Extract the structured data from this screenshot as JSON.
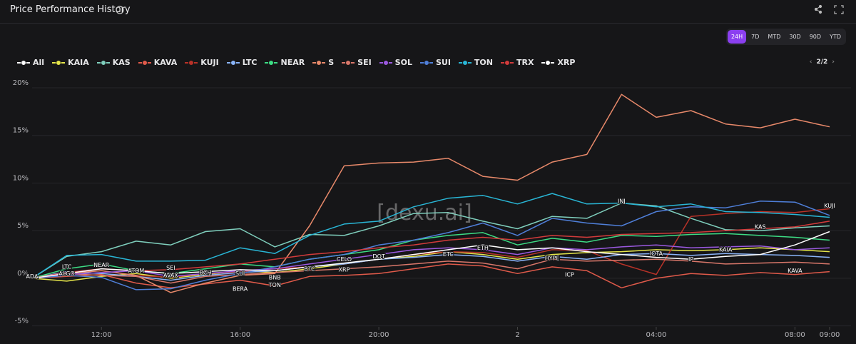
{
  "header": {
    "title": "Price Performance History",
    "timeframes": [
      "24H",
      "7D",
      "MTD",
      "30D",
      "90D",
      "YTD"
    ],
    "active_timeframe_index": 0
  },
  "pager": "2/2",
  "watermark": "[dexu.ai]",
  "chart_data": {
    "type": "line",
    "all_toggle": "All",
    "x": [
      10,
      11,
      12,
      13,
      14,
      15,
      16,
      17,
      18,
      19,
      20,
      21,
      22,
      23,
      24,
      25,
      26,
      27,
      28,
      29,
      30,
      31,
      32,
      33
    ],
    "xlim": [
      10,
      33
    ],
    "xticks": [
      {
        "value": 12,
        "label": "12:00"
      },
      {
        "value": 16,
        "label": "16:00"
      },
      {
        "value": 20,
        "label": "20:00"
      },
      {
        "value": 24,
        "label": "2"
      },
      {
        "value": 28,
        "label": "04:00"
      },
      {
        "value": 32,
        "label": "08:00"
      },
      {
        "value": 33,
        "label": "09:00"
      }
    ],
    "ylim": [
      -5.4,
      20.6
    ],
    "yticks": [
      {
        "value": -5,
        "label": "-5%"
      },
      {
        "value": 0,
        "label": "0%"
      },
      {
        "value": 5,
        "label": "5%"
      },
      {
        "value": 10,
        "label": "10%"
      },
      {
        "value": 15,
        "label": "15%"
      },
      {
        "value": 20,
        "label": "20%"
      }
    ],
    "grid": true,
    "series": [
      {
        "name": "KAIA",
        "color": "#e6e64a",
        "values": [
          0,
          -0.3,
          0.2,
          0.5,
          0.0,
          0.4,
          0.8,
          0.6,
          1.0,
          1.5,
          2.0,
          2.3,
          2.8,
          2.5,
          2.0,
          2.5,
          2.7,
          2.8,
          3.0,
          2.9,
          3.0,
          3.2,
          3.0,
          2.8
        ]
      },
      {
        "name": "KAS",
        "color": "#7fcfbd",
        "values": [
          0,
          2.3,
          2.8,
          3.9,
          3.5,
          4.9,
          5.2,
          3.3,
          4.6,
          4.5,
          5.5,
          6.8,
          6.9,
          6.0,
          5.2,
          6.5,
          6.3,
          7.9,
          7.6,
          6.3,
          5.1,
          5.0,
          5.3,
          5.5
        ]
      },
      {
        "name": "KAVA",
        "color": "#e05a4a",
        "values": [
          0,
          0.2,
          0.4,
          -0.5,
          -1.0,
          -0.6,
          -0.2,
          -0.8,
          0.2,
          0.3,
          0.5,
          1.0,
          1.5,
          1.3,
          0.5,
          1.2,
          0.8,
          -1.0,
          0.0,
          0.5,
          0.3,
          0.6,
          0.4,
          0.7
        ]
      },
      {
        "name": "KUJI",
        "color": "#b83228",
        "values": [
          0,
          0.5,
          0.8,
          0.3,
          0.1,
          0.5,
          0.7,
          1.0,
          1.2,
          1.5,
          2.0,
          2.5,
          2.8,
          2.7,
          2.2,
          3.0,
          2.9,
          1.5,
          0.4,
          6.5,
          6.8,
          7.0,
          6.9,
          7.3
        ]
      },
      {
        "name": "LTC",
        "color": "#8ab4f8",
        "values": [
          0,
          0.7,
          0.5,
          0.2,
          -0.2,
          0.3,
          0.6,
          0.8,
          1.2,
          1.5,
          2.0,
          2.2,
          2.5,
          2.3,
          1.8,
          2.3,
          2.0,
          2.5,
          2.6,
          2.4,
          2.6,
          2.5,
          2.4,
          2.2
        ]
      },
      {
        "name": "NEAR",
        "color": "#3ddc84",
        "values": [
          0,
          1.0,
          1.5,
          0.8,
          0.5,
          1.0,
          1.5,
          1.2,
          2.0,
          2.5,
          3.0,
          4.0,
          4.5,
          4.8,
          3.5,
          4.2,
          3.8,
          4.5,
          4.4,
          4.6,
          4.7,
          4.5,
          4.3,
          4.0
        ]
      },
      {
        "name": "S",
        "color": "#e8896a",
        "values": [
          0,
          0.5,
          0.8,
          0.3,
          -1.5,
          -0.5,
          0.3,
          0.5,
          5.5,
          11.8,
          12.1,
          12.2,
          12.6,
          10.7,
          10.3,
          12.2,
          13.0,
          19.3,
          16.9,
          17.6,
          16.2,
          15.8,
          16.7,
          15.9
        ]
      },
      {
        "name": "SEI",
        "color": "#d9776a",
        "values": [
          0,
          0.5,
          0.3,
          0.2,
          -0.5,
          0.2,
          0.4,
          0.6,
          0.8,
          1.0,
          1.2,
          1.5,
          1.8,
          1.6,
          1.0,
          2.0,
          1.8,
          1.9,
          2.0,
          1.8,
          1.5,
          1.6,
          1.7,
          1.5
        ]
      },
      {
        "name": "SOL",
        "color": "#9b59e0",
        "values": [
          0,
          0.4,
          0.6,
          0.8,
          0.2,
          0.5,
          0.8,
          1.0,
          1.5,
          2.0,
          2.5,
          3.0,
          3.2,
          3.0,
          2.5,
          3.2,
          3.0,
          3.3,
          3.5,
          3.2,
          3.3,
          3.4,
          3.0,
          3.2
        ]
      },
      {
        "name": "SUI",
        "color": "#4f7fd9",
        "values": [
          0,
          0.3,
          0.1,
          -1.2,
          -1.1,
          -0.2,
          0.5,
          1.2,
          2.0,
          2.5,
          3.5,
          4.0,
          4.8,
          5.8,
          4.5,
          6.3,
          5.8,
          5.5,
          7.0,
          7.5,
          7.4,
          8.1,
          8.0,
          6.6
        ]
      },
      {
        "name": "TON",
        "color": "#29b6d6",
        "values": [
          0,
          2.4,
          2.5,
          1.8,
          1.8,
          1.9,
          3.2,
          2.6,
          4.5,
          5.7,
          6.0,
          7.5,
          8.4,
          8.7,
          7.8,
          8.9,
          7.8,
          7.9,
          7.5,
          7.8,
          7.0,
          6.9,
          6.7,
          6.4
        ]
      },
      {
        "name": "TRX",
        "color": "#d23b3b",
        "values": [
          0,
          0.6,
          1.0,
          0.8,
          0.9,
          1.2,
          1.5,
          2.0,
          2.5,
          2.8,
          3.2,
          3.5,
          4.0,
          4.3,
          4.0,
          4.5,
          4.3,
          4.6,
          4.7,
          4.8,
          5.0,
          5.2,
          5.4,
          6.0
        ]
      },
      {
        "name": "XRP",
        "color": "#ffffff",
        "values": [
          0,
          0.5,
          1.0,
          0.8,
          0.5,
          0.7,
          0.9,
          0.8,
          1.2,
          1.6,
          2.0,
          2.5,
          3.0,
          3.5,
          3.0,
          3.2,
          2.8,
          2.5,
          2.2,
          2.0,
          2.3,
          2.5,
          3.5,
          4.9
        ]
      }
    ],
    "annotations": [
      {
        "text": "ADA",
        "x": 10,
        "y": 0
      },
      {
        "text": "LTC",
        "x": 11,
        "y": 1.0
      },
      {
        "text": "ALGO",
        "x": 11,
        "y": 0.3
      },
      {
        "text": "NEAR",
        "x": 12,
        "y": 1.2
      },
      {
        "text": "ATOM",
        "x": 13,
        "y": 0.6
      },
      {
        "text": "SEI",
        "x": 14,
        "y": 0.9
      },
      {
        "text": "AVAX",
        "x": 14,
        "y": 0.1
      },
      {
        "text": "BCH",
        "x": 15,
        "y": 0.4
      },
      {
        "text": "SUI",
        "x": 16,
        "y": 0.3
      },
      {
        "text": "BERA",
        "x": 16,
        "y": -1.3
      },
      {
        "text": "BNB",
        "x": 17,
        "y": -0.1
      },
      {
        "text": "TON",
        "x": 17,
        "y": -0.9
      },
      {
        "text": "BTC",
        "x": 18,
        "y": 0.8
      },
      {
        "text": "CELO",
        "x": 19,
        "y": 1.8
      },
      {
        "text": "XRP",
        "x": 19,
        "y": 0.7
      },
      {
        "text": "DOT",
        "x": 20,
        "y": 2.1
      },
      {
        "text": "ETC",
        "x": 22,
        "y": 2.3
      },
      {
        "text": "ETH",
        "x": 23,
        "y": 3.0
      },
      {
        "text": "HYPE",
        "x": 25,
        "y": 1.9
      },
      {
        "text": "ICP",
        "x": 25.5,
        "y": 0.2
      },
      {
        "text": "INJ",
        "x": 27,
        "y": 7.9
      },
      {
        "text": "IOTA",
        "x": 28,
        "y": 2.4
      },
      {
        "text": "IP",
        "x": 29,
        "y": 1.8
      },
      {
        "text": "KAIA",
        "x": 30,
        "y": 2.8
      },
      {
        "text": "KAS",
        "x": 31,
        "y": 5.2
      },
      {
        "text": "KAVA",
        "x": 32,
        "y": 0.6
      },
      {
        "text": "KUJI",
        "x": 33,
        "y": 7.4
      }
    ]
  }
}
